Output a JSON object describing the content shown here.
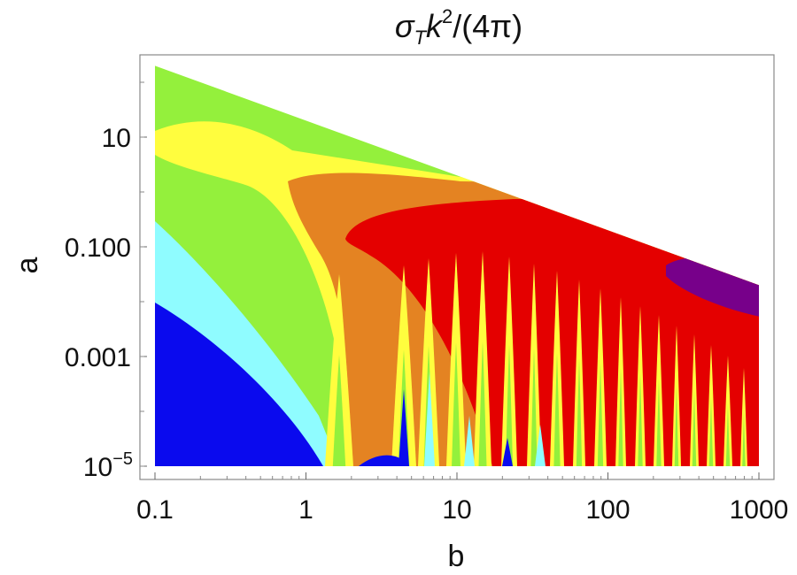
{
  "chart_data": {
    "type": "contour",
    "title": "σTk²/(4π)",
    "title_parts": {
      "sigma": "σ",
      "sub": "T",
      "k": "k",
      "sup": "2",
      "rest": "/(4π)"
    },
    "xlabel": "b",
    "ylabel": "a",
    "x_scale": "log",
    "y_scale": "log",
    "xlim": [
      0.1,
      1000
    ],
    "ylim": [
      1e-05,
      200
    ],
    "x_ticks": [
      {
        "value": 0.1,
        "label": "0.1"
      },
      {
        "value": 1,
        "label": "1"
      },
      {
        "value": 10,
        "label": "10"
      },
      {
        "value": 100,
        "label": "100"
      },
      {
        "value": 1000,
        "label": "1000"
      }
    ],
    "y_ticks": [
      {
        "value": 1e-05,
        "label": "10",
        "exp": "−5"
      },
      {
        "value": 0.001,
        "label": "0.001"
      },
      {
        "value": 0.1,
        "label": "0.100"
      },
      {
        "value": 10,
        "label": "10"
      }
    ],
    "boundary_line": {
      "from": {
        "b": 0.1,
        "a": 200
      },
      "to": {
        "b": 1000,
        "a": 0.02
      }
    },
    "band_colors": [
      "#0a0aee",
      "#8ffcff",
      "#94f03c",
      "#fffd3e",
      "#e48322",
      "#e40000",
      "#77008a"
    ],
    "grid": false
  }
}
